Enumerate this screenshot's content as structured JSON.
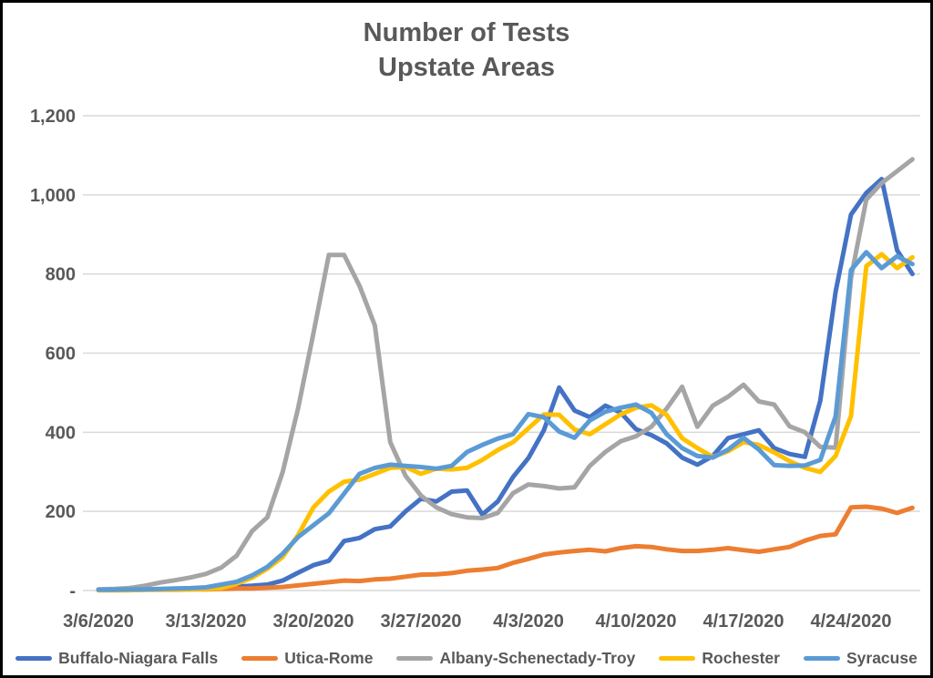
{
  "chart": {
    "title_line1": "Number of Tests",
    "title_line2": "Upstate Areas"
  },
  "chart_data": {
    "type": "line",
    "title": "Number of Tests",
    "subtitle": "Upstate Areas",
    "grid": true,
    "legend_position": "bottom",
    "ylim": [
      0,
      1200
    ],
    "text_color": "#595959",
    "gridline_color": "#D9D9D9",
    "x_tick_labels": [
      "3/6/2020",
      "3/13/2020",
      "3/20/2020",
      "3/27/2020",
      "4/3/2020",
      "4/10/2020",
      "4/17/2020",
      "4/24/2020"
    ],
    "y_ticks": [
      {
        "value": 0,
        "label": "-"
      },
      {
        "value": 200,
        "label": "200"
      },
      {
        "value": 400,
        "label": "400"
      },
      {
        "value": 600,
        "label": "600"
      },
      {
        "value": 800,
        "label": "800"
      },
      {
        "value": 1000,
        "label": "1,000"
      },
      {
        "value": 1200,
        "label": "1,200"
      }
    ],
    "x": [
      "3/6/2020",
      "3/7/2020",
      "3/8/2020",
      "3/9/2020",
      "3/10/2020",
      "3/11/2020",
      "3/12/2020",
      "3/13/2020",
      "3/14/2020",
      "3/15/2020",
      "3/16/2020",
      "3/17/2020",
      "3/18/2020",
      "3/19/2020",
      "3/20/2020",
      "3/21/2020",
      "3/22/2020",
      "3/23/2020",
      "3/24/2020",
      "3/25/2020",
      "3/26/2020",
      "3/27/2020",
      "3/28/2020",
      "3/29/2020",
      "3/30/2020",
      "3/31/2020",
      "4/1/2020",
      "4/2/2020",
      "4/3/2020",
      "4/4/2020",
      "4/5/2020",
      "4/6/2020",
      "4/7/2020",
      "4/8/2020",
      "4/9/2020",
      "4/10/2020",
      "4/11/2020",
      "4/12/2020",
      "4/13/2020",
      "4/14/2020",
      "4/15/2020",
      "4/16/2020",
      "4/17/2020",
      "4/18/2020",
      "4/19/2020",
      "4/20/2020",
      "4/21/2020",
      "4/22/2020",
      "4/23/2020",
      "4/24/2020",
      "4/25/2020",
      "4/26/2020",
      "4/27/2020",
      "4/28/2020"
    ],
    "series": [
      {
        "name": "Buffalo-Niagara Falls",
        "color": "#4472C4",
        "values": [
          2,
          2,
          2,
          3,
          3,
          4,
          5,
          6,
          8,
          10,
          12,
          15,
          25,
          45,
          64,
          75,
          125,
          133,
          155,
          162,
          200,
          232,
          225,
          250,
          253,
          192,
          225,
          287,
          335,
          405,
          513,
          455,
          438,
          467,
          450,
          408,
          393,
          372,
          336,
          318,
          340,
          385,
          395,
          405,
          360,
          345,
          338,
          480,
          755,
          950,
          1005,
          1040,
          860,
          800
        ]
      },
      {
        "name": "Utica-Rome",
        "color": "#ED7D31",
        "values": [
          1,
          1,
          1,
          2,
          2,
          2,
          3,
          3,
          4,
          5,
          5,
          7,
          9,
          13,
          17,
          21,
          25,
          24,
          28,
          30,
          35,
          40,
          41,
          44,
          50,
          53,
          57,
          70,
          80,
          91,
          96,
          100,
          103,
          99,
          107,
          112,
          110,
          104,
          100,
          100,
          103,
          107,
          102,
          98,
          104,
          110,
          126,
          138,
          142,
          210,
          212,
          207,
          196,
          209
        ]
      },
      {
        "name": "Albany-Schenectady-Troy",
        "color": "#A5A5A5",
        "values": [
          3,
          4,
          6,
          12,
          20,
          26,
          33,
          42,
          58,
          88,
          150,
          185,
          300,
          460,
          650,
          848,
          848,
          770,
          670,
          375,
          290,
          240,
          210,
          193,
          185,
          183,
          196,
          246,
          268,
          264,
          258,
          261,
          315,
          350,
          377,
          390,
          414,
          460,
          515,
          414,
          467,
          490,
          520,
          478,
          470,
          415,
          400,
          363,
          361,
          790,
          988,
          1030,
          1060,
          1090
        ]
      },
      {
        "name": "Rochester",
        "color": "#FFC000",
        "values": [
          1,
          1,
          1,
          2,
          2,
          3,
          3,
          4,
          6,
          17,
          32,
          55,
          85,
          140,
          210,
          250,
          275,
          280,
          295,
          310,
          312,
          295,
          308,
          306,
          310,
          330,
          355,
          375,
          410,
          445,
          444,
          407,
          395,
          420,
          445,
          462,
          468,
          444,
          385,
          360,
          338,
          352,
          375,
          368,
          349,
          327,
          310,
          300,
          340,
          441,
          820,
          850,
          815,
          842
        ]
      },
      {
        "name": "Syracuse",
        "color": "#5B9BD5",
        "values": [
          2,
          2,
          3,
          3,
          4,
          5,
          6,
          8,
          15,
          22,
          38,
          60,
          93,
          135,
          165,
          195,
          245,
          295,
          310,
          318,
          315,
          312,
          308,
          315,
          350,
          368,
          384,
          395,
          446,
          438,
          402,
          386,
          430,
          452,
          462,
          470,
          449,
          395,
          360,
          340,
          336,
          356,
          386,
          356,
          317,
          315,
          316,
          330,
          440,
          810,
          855,
          815,
          845,
          825
        ]
      }
    ]
  }
}
